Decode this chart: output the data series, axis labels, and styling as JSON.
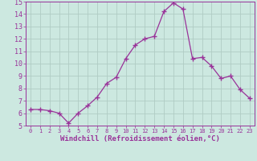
{
  "x": [
    0,
    1,
    2,
    3,
    4,
    5,
    6,
    7,
    8,
    9,
    10,
    11,
    12,
    13,
    14,
    15,
    16,
    17,
    18,
    19,
    20,
    21,
    22,
    23
  ],
  "y": [
    6.3,
    6.3,
    6.2,
    6.0,
    5.2,
    6.0,
    6.6,
    7.3,
    8.4,
    8.9,
    10.4,
    11.5,
    12.0,
    12.2,
    14.2,
    14.9,
    14.4,
    10.4,
    10.5,
    9.8,
    8.8,
    9.0,
    7.9,
    7.2
  ],
  "line_color": "#993399",
  "marker": "+",
  "marker_size": 4,
  "linewidth": 0.9,
  "xlabel": "Windchill (Refroidissement éolien,°C)",
  "xlabel_fontsize": 6.5,
  "xlim": [
    -0.5,
    23.5
  ],
  "ylim": [
    5,
    15
  ],
  "yticks": [
    5,
    6,
    7,
    8,
    9,
    10,
    11,
    12,
    13,
    14,
    15
  ],
  "xticks": [
    0,
    1,
    2,
    3,
    4,
    5,
    6,
    7,
    8,
    9,
    10,
    11,
    12,
    13,
    14,
    15,
    16,
    17,
    18,
    19,
    20,
    21,
    22,
    23
  ],
  "xtick_fontsize": 5.0,
  "ytick_fontsize": 6.0,
  "grid_color": "#b0ccc4",
  "background_color": "#cce8e0",
  "figure_background": "#cce8e0",
  "xlabel_color": "#993399",
  "tick_color": "#993399",
  "spine_color": "#993399"
}
